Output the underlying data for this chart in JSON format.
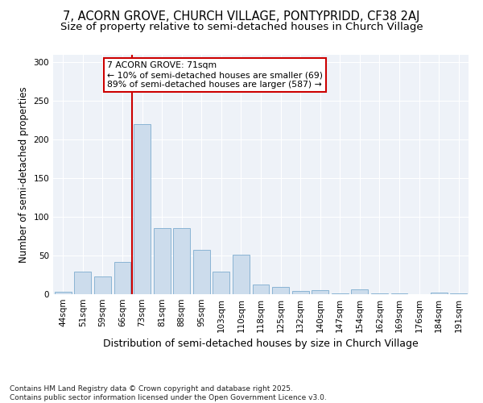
{
  "title": "7, ACORN GROVE, CHURCH VILLAGE, PONTYPRIDD, CF38 2AJ",
  "subtitle": "Size of property relative to semi-detached houses in Church Village",
  "xlabel": "Distribution of semi-detached houses by size in Church Village",
  "ylabel": "Number of semi-detached properties",
  "categories": [
    "44sqm",
    "51sqm",
    "59sqm",
    "66sqm",
    "73sqm",
    "81sqm",
    "88sqm",
    "95sqm",
    "103sqm",
    "110sqm",
    "118sqm",
    "125sqm",
    "132sqm",
    "140sqm",
    "147sqm",
    "154sqm",
    "162sqm",
    "169sqm",
    "176sqm",
    "184sqm",
    "191sqm"
  ],
  "values": [
    3,
    29,
    23,
    42,
    220,
    85,
    85,
    57,
    29,
    51,
    13,
    9,
    4,
    5,
    1,
    6,
    1,
    1,
    0,
    2,
    1
  ],
  "bar_color": "#ccdcec",
  "bar_edge_color": "#8ab4d4",
  "vline_index": 4,
  "vline_color": "#cc0000",
  "annotation_title": "7 ACORN GROVE: 71sqm",
  "annotation_line1": "← 10% of semi-detached houses are smaller (69)",
  "annotation_line2": "89% of semi-detached houses are larger (587) →",
  "annotation_box_color": "#cc0000",
  "ylim": [
    0,
    310
  ],
  "yticks": [
    0,
    50,
    100,
    150,
    200,
    250,
    300
  ],
  "footer": "Contains HM Land Registry data © Crown copyright and database right 2025.\nContains public sector information licensed under the Open Government Licence v3.0.",
  "plot_bg_color": "#eef2f8",
  "title_fontsize": 10.5,
  "subtitle_fontsize": 9.5,
  "xlabel_fontsize": 9,
  "ylabel_fontsize": 8.5,
  "tick_fontsize": 7.5,
  "annot_fontsize": 7.8,
  "footer_fontsize": 6.5
}
